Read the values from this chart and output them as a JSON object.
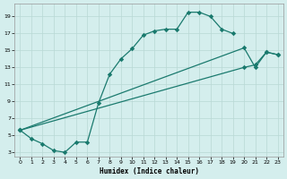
{
  "xlabel": "Humidex (Indice chaleur)",
  "bg_color": "#d4eeed",
  "line_color": "#1a7a6e",
  "grid_color": "#b8d8d4",
  "xlim": [
    -0.5,
    23.5
  ],
  "ylim": [
    2.5,
    20.5
  ],
  "xticks": [
    0,
    1,
    2,
    3,
    4,
    5,
    6,
    7,
    8,
    9,
    10,
    11,
    12,
    13,
    14,
    15,
    16,
    17,
    18,
    19,
    20,
    21,
    22,
    23
  ],
  "yticks": [
    3,
    5,
    7,
    9,
    11,
    13,
    15,
    17,
    19
  ],
  "curve1_x": [
    0,
    1,
    2,
    3,
    4,
    5,
    6,
    7,
    8,
    9,
    10,
    11,
    12,
    13,
    14,
    15,
    16,
    17,
    18,
    19,
    20,
    21
  ],
  "curve1_y": [
    5.6,
    4.6,
    4.0,
    3.2,
    3.0,
    4.2,
    4.2,
    8.8,
    12.2,
    14.0,
    15.2,
    16.8,
    17.3,
    17.5,
    17.5,
    19.5,
    19.5,
    19.0,
    17.5,
    17.0,
    null,
    null
  ],
  "curve2_x": [
    0,
    20,
    21,
    22,
    23
  ],
  "curve2_y": [
    5.6,
    13.0,
    13.3,
    14.8,
    14.5
  ],
  "curve3_x": [
    0,
    20,
    21,
    22,
    23
  ],
  "curve3_y": [
    5.6,
    15.3,
    13.0,
    14.8,
    14.5
  ]
}
